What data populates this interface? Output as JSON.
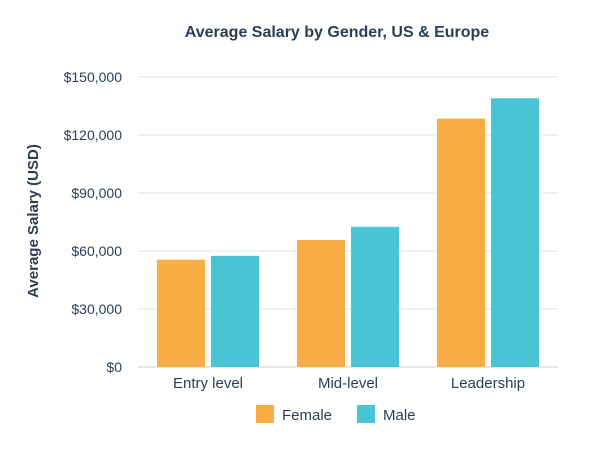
{
  "chart_data": {
    "type": "bar",
    "title": "Average Salary by Gender, US & Europe",
    "xlabel": "",
    "ylabel": "Average Salary (USD)",
    "categories": [
      "Entry level",
      "Mid-level",
      "Leadership"
    ],
    "series": [
      {
        "name": "Female",
        "color": "#f9ad45",
        "values": [
          55500,
          65700,
          128500
        ]
      },
      {
        "name": "Male",
        "color": "#49c4d4",
        "values": [
          57500,
          72500,
          139000
        ]
      }
    ],
    "ylim": [
      0,
      150000
    ],
    "yticks": [
      0,
      30000,
      60000,
      90000,
      120000,
      150000
    ],
    "ytick_labels": [
      "$0",
      "$30,000",
      "$60,000",
      "$90,000",
      "$120,000",
      "$150,000"
    ],
    "grid": true,
    "legend_position": "bottom"
  }
}
